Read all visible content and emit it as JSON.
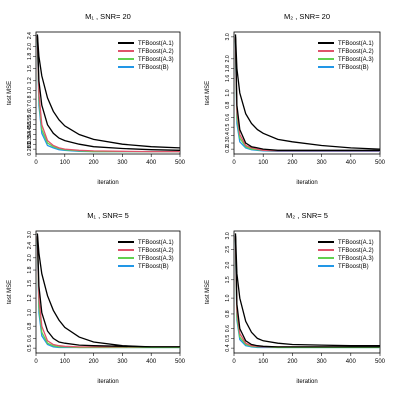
{
  "chart_data": [
    {
      "type": "line",
      "title": "M₁ , SNR= 20",
      "xlabel": "iteration",
      "ylabel": "test MSE",
      "xlim": [
        0,
        500
      ],
      "x_ticks": [
        0,
        100,
        200,
        300,
        400,
        500
      ],
      "y_tick_labels": [
        "0.283",
        "0.3",
        "0.35",
        "0.4",
        "0.45",
        "0.5",
        "0.55",
        "0.6",
        "0.7",
        "0.8",
        "1.0",
        "1.2",
        "1.5",
        "1.8",
        "2.0",
        "2.4"
      ],
      "y_tick_fracs": [
        0.04,
        0.08,
        0.12,
        0.16,
        0.2,
        0.24,
        0.28,
        0.33,
        0.38,
        0.45,
        0.52,
        0.6,
        0.7,
        0.8,
        0.88,
        0.97
      ],
      "legend_position": "top-right",
      "series": [
        {
          "name": "TFBoost(A.1)",
          "color": "#000000",
          "curves": [
            {
              "x": [
                5,
                10,
                20,
                40,
                60,
                80,
                100,
                150,
                200,
                300,
                400,
                500
              ],
              "y": [
                0.98,
                0.8,
                0.64,
                0.46,
                0.35,
                0.28,
                0.23,
                0.16,
                0.12,
                0.08,
                0.06,
                0.05
              ]
            },
            {
              "x": [
                5,
                10,
                20,
                40,
                60,
                80,
                100,
                150,
                200,
                300,
                400,
                500
              ],
              "y": [
                0.97,
                0.6,
                0.4,
                0.24,
                0.17,
                0.13,
                0.11,
                0.08,
                0.06,
                0.045,
                0.035,
                0.03
              ]
            }
          ]
        },
        {
          "name": "TFBoost(A.2)",
          "color": "#df536b",
          "curves": [
            {
              "x": [
                5,
                10,
                20,
                40,
                60,
                80,
                100,
                150,
                200,
                300,
                400,
                500
              ],
              "y": [
                0.96,
                0.5,
                0.24,
                0.11,
                0.07,
                0.05,
                0.04,
                0.03,
                0.025,
                0.022,
                0.02,
                0.02
              ]
            }
          ]
        },
        {
          "name": "TFBoost(A.3)",
          "color": "#61d04f",
          "curves": [
            {
              "x": [
                5,
                10,
                20,
                40,
                60,
                80,
                100,
                150,
                200,
                300,
                400,
                500
              ],
              "y": [
                0.95,
                0.45,
                0.2,
                0.09,
                0.06,
                0.045,
                0.035,
                0.025,
                0.02,
                0.02,
                0.02,
                0.02
              ]
            }
          ]
        },
        {
          "name": "TFBoost(B)",
          "color": "#2297e6",
          "curves": [
            {
              "x": [
                5,
                10,
                20,
                40,
                60,
                80,
                100,
                150,
                200,
                300,
                400,
                500
              ],
              "y": [
                0.94,
                0.4,
                0.17,
                0.07,
                0.05,
                0.035,
                0.03,
                0.022,
                0.02,
                0.02,
                0.02,
                0.02
              ]
            }
          ]
        }
      ]
    },
    {
      "type": "line",
      "title": "M₂ , SNR= 20",
      "xlabel": "iteration",
      "ylabel": "test MSE",
      "xlim": [
        0,
        500
      ],
      "x_ticks": [
        0,
        100,
        200,
        300,
        400,
        500
      ],
      "y_tick_labels": [
        "0.2",
        "0.3",
        "0.4",
        "0.5",
        "0.6",
        "0.8",
        "1.0",
        "1.6",
        "1.8",
        "2.0",
        "3.0"
      ],
      "y_tick_fracs": [
        0.04,
        0.09,
        0.15,
        0.22,
        0.3,
        0.4,
        0.5,
        0.62,
        0.7,
        0.78,
        0.96
      ],
      "legend_position": "top-right",
      "series": [
        {
          "name": "TFBoost(A.1)",
          "color": "#000000",
          "curves": [
            {
              "x": [
                5,
                10,
                20,
                40,
                60,
                80,
                100,
                150,
                200,
                300,
                400,
                500
              ],
              "y": [
                0.98,
                0.7,
                0.5,
                0.33,
                0.25,
                0.2,
                0.17,
                0.12,
                0.1,
                0.07,
                0.05,
                0.04
              ]
            },
            {
              "x": [
                5,
                10,
                20,
                40,
                60,
                80,
                100,
                150,
                200,
                300,
                400,
                500
              ],
              "y": [
                0.96,
                0.4,
                0.2,
                0.09,
                0.06,
                0.05,
                0.04,
                0.03,
                0.03,
                0.03,
                0.03,
                0.03
              ]
            }
          ]
        },
        {
          "name": "TFBoost(A.2)",
          "color": "#df536b",
          "curves": [
            {
              "x": [
                5,
                10,
                20,
                40,
                60,
                80,
                100,
                150,
                200,
                300,
                400,
                500
              ],
              "y": [
                0.95,
                0.35,
                0.16,
                0.07,
                0.05,
                0.04,
                0.03,
                0.025,
                0.025,
                0.025,
                0.025,
                0.025
              ]
            }
          ]
        },
        {
          "name": "TFBoost(A.3)",
          "color": "#61d04f",
          "curves": [
            {
              "x": [
                5,
                10,
                20,
                40,
                60,
                80,
                100,
                150,
                200,
                300,
                400,
                500
              ],
              "y": [
                0.94,
                0.3,
                0.13,
                0.06,
                0.04,
                0.035,
                0.03,
                0.025,
                0.025,
                0.025,
                0.025,
                0.025
              ]
            }
          ]
        },
        {
          "name": "TFBoost(B)",
          "color": "#2297e6",
          "curves": [
            {
              "x": [
                5,
                10,
                20,
                40,
                60,
                80,
                100,
                150,
                200,
                300,
                400,
                500
              ],
              "y": [
                0.93,
                0.25,
                0.1,
                0.05,
                0.035,
                0.03,
                0.025,
                0.022,
                0.022,
                0.022,
                0.022,
                0.022
              ]
            }
          ]
        }
      ]
    },
    {
      "type": "line",
      "title": "M₁ , SNR= 5",
      "xlabel": "iteration",
      "ylabel": "test MSE",
      "xlim": [
        0,
        500
      ],
      "x_ticks": [
        0,
        100,
        200,
        300,
        400,
        500
      ],
      "y_tick_labels": [
        "0.5",
        "0.6",
        "0.8",
        "1.0",
        "1.2",
        "1.5",
        "1.8",
        "2.0",
        "2.4",
        "3.0"
      ],
      "y_tick_fracs": [
        0.04,
        0.12,
        0.22,
        0.33,
        0.45,
        0.57,
        0.68,
        0.78,
        0.88,
        0.97
      ],
      "legend_position": "top-right",
      "series": [
        {
          "name": "TFBoost(A.1)",
          "color": "#000000",
          "curves": [
            {
              "x": [
                5,
                10,
                20,
                40,
                60,
                80,
                100,
                150,
                200,
                300,
                400,
                500
              ],
              "y": [
                0.98,
                0.82,
                0.65,
                0.47,
                0.35,
                0.27,
                0.21,
                0.13,
                0.09,
                0.06,
                0.05,
                0.05
              ]
            },
            {
              "x": [
                5,
                10,
                20,
                40,
                60,
                80,
                100,
                150,
                200,
                300,
                400,
                500
              ],
              "y": [
                0.96,
                0.55,
                0.33,
                0.18,
                0.12,
                0.09,
                0.08,
                0.065,
                0.06,
                0.055,
                0.05,
                0.05
              ]
            }
          ]
        },
        {
          "name": "TFBoost(A.2)",
          "color": "#df536b",
          "curves": [
            {
              "x": [
                5,
                10,
                20,
                40,
                60,
                80,
                100,
                150,
                200,
                300,
                400,
                500
              ],
              "y": [
                0.95,
                0.45,
                0.22,
                0.1,
                0.07,
                0.06,
                0.055,
                0.05,
                0.05,
                0.05,
                0.05,
                0.05
              ]
            }
          ]
        },
        {
          "name": "TFBoost(A.3)",
          "color": "#61d04f",
          "curves": [
            {
              "x": [
                5,
                10,
                20,
                40,
                60,
                80,
                100,
                150,
                200,
                300,
                400,
                500
              ],
              "y": [
                0.94,
                0.38,
                0.17,
                0.08,
                0.06,
                0.05,
                0.05,
                0.045,
                0.045,
                0.045,
                0.045,
                0.045
              ]
            }
          ]
        },
        {
          "name": "TFBoost(B)",
          "color": "#2297e6",
          "curves": [
            {
              "x": [
                5,
                10,
                20,
                40,
                60,
                80,
                100,
                150,
                200,
                300,
                400,
                500
              ],
              "y": [
                0.93,
                0.33,
                0.14,
                0.07,
                0.05,
                0.045,
                0.045,
                0.045,
                0.045,
                0.045,
                0.045,
                0.045
              ]
            }
          ]
        }
      ]
    },
    {
      "type": "line",
      "title": "M₂ , SNR= 5",
      "xlabel": "iteration",
      "ylabel": "test MSE",
      "xlim": [
        0,
        500
      ],
      "x_ticks": [
        0,
        100,
        200,
        300,
        400,
        500
      ],
      "y_tick_labels": [
        "0.4",
        "0.5",
        "0.6",
        "0.8",
        "1.0",
        "1.5",
        "2.0",
        "2.5",
        "3.0"
      ],
      "y_tick_fracs": [
        0.04,
        0.12,
        0.2,
        0.32,
        0.45,
        0.6,
        0.72,
        0.85,
        0.96
      ],
      "legend_position": "top-right",
      "series": [
        {
          "name": "TFBoost(A.1)",
          "color": "#000000",
          "curves": [
            {
              "x": [
                5,
                10,
                20,
                40,
                60,
                80,
                100,
                150,
                200,
                300,
                400,
                500
              ],
              "y": [
                0.98,
                0.65,
                0.45,
                0.26,
                0.17,
                0.12,
                0.1,
                0.08,
                0.07,
                0.065,
                0.06,
                0.06
              ]
            },
            {
              "x": [
                5,
                10,
                20,
                40,
                60,
                80,
                100,
                150,
                200,
                300,
                400,
                500
              ],
              "y": [
                0.96,
                0.4,
                0.2,
                0.1,
                0.07,
                0.06,
                0.055,
                0.05,
                0.05,
                0.05,
                0.05,
                0.05
              ]
            }
          ]
        },
        {
          "name": "TFBoost(A.2)",
          "color": "#df536b",
          "curves": [
            {
              "x": [
                5,
                10,
                20,
                40,
                60,
                80,
                100,
                150,
                200,
                300,
                400,
                500
              ],
              "y": [
                0.95,
                0.35,
                0.16,
                0.08,
                0.06,
                0.055,
                0.05,
                0.05,
                0.05,
                0.05,
                0.05,
                0.05
              ]
            }
          ]
        },
        {
          "name": "TFBoost(A.3)",
          "color": "#61d04f",
          "curves": [
            {
              "x": [
                5,
                10,
                20,
                40,
                60,
                80,
                100,
                150,
                200,
                300,
                400,
                500
              ],
              "y": [
                0.94,
                0.3,
                0.13,
                0.07,
                0.055,
                0.05,
                0.05,
                0.045,
                0.045,
                0.045,
                0.045,
                0.045
              ]
            }
          ]
        },
        {
          "name": "TFBoost(B)",
          "color": "#2297e6",
          "curves": [
            {
              "x": [
                5,
                10,
                20,
                40,
                60,
                80,
                100,
                150,
                200,
                300,
                400,
                500
              ],
              "y": [
                0.93,
                0.27,
                0.11,
                0.06,
                0.05,
                0.045,
                0.045,
                0.045,
                0.045,
                0.045,
                0.045,
                0.045
              ]
            }
          ]
        }
      ]
    }
  ]
}
